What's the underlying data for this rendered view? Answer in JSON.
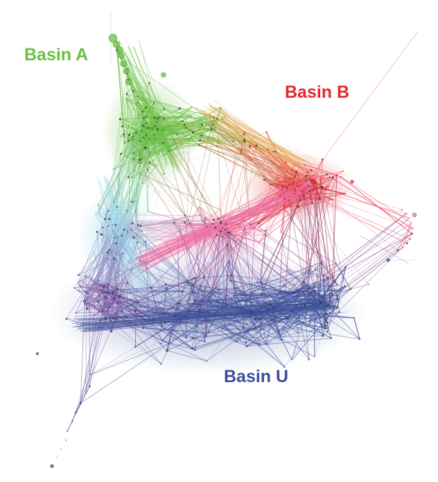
{
  "labels": {
    "basin_a": "Basin A",
    "basin_b": "Basin B",
    "basin_u": "Basin U"
  },
  "colors": {
    "basin_a": "#6cbf45",
    "basin_b": "#e8252f",
    "basin_u": "#3d4f9a",
    "transition_cyan": "#9fd5ea",
    "transition_pink": "#ee6fa0",
    "transition_purple": "#8a5ca8",
    "transition_orange": "#e3a350",
    "background": "#ffffff"
  }
}
